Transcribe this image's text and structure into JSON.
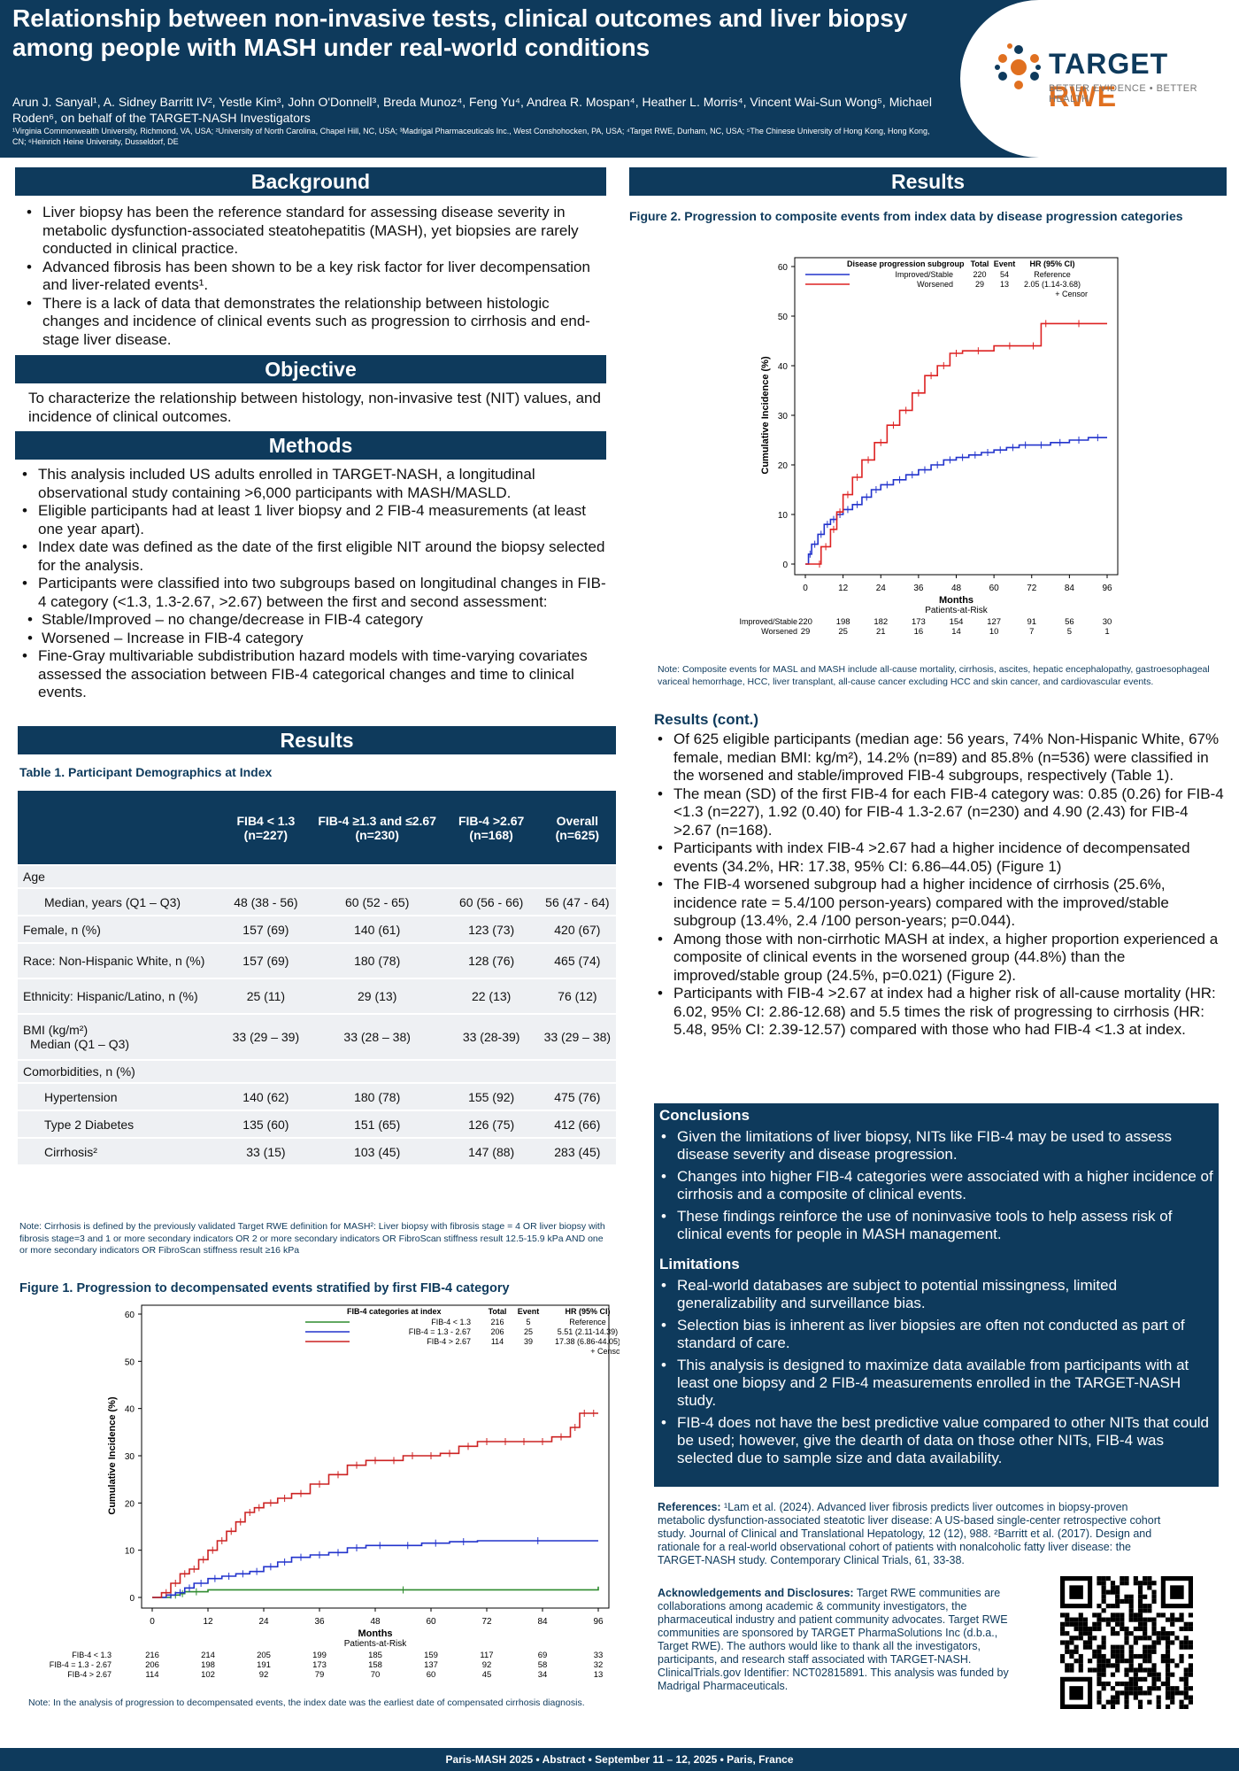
{
  "header": {
    "title": "Relationship between non-invasive tests, clinical outcomes and liver biopsy among people with MASH under real-world conditions",
    "authors": "Arun J. Sanyal¹, A. Sidney Barritt IV², Yestle Kim³, John O'Donnell³, Breda Munoz⁴, Feng Yu⁴, Andrea R. Mospan⁴, Heather L. Morris⁴, Vincent Wai-Sun Wong⁵, Michael Roden⁶, on behalf of the TARGET-NASH Investigators",
    "affiliations": "¹Virginia Commonwealth University, Richmond, VA, USA; ²University of North Carolina, Chapel Hill, NC, USA; ³Madrigal Pharmaceuticals Inc., West Conshohocken, PA, USA; ⁴Target RWE, Durham, NC, USA; ⁵The Chinese University of Hong Kong, Hong Kong, CN; ⁶Heinrich Heine University, Dusseldorf, DE",
    "logo_text_1": "TARGET",
    "logo_text_2": " RWE",
    "logo_tagline": "BETTER EVIDENCE • BETTER HEALTH"
  },
  "background": {
    "heading": "Background",
    "bullets": [
      "Liver biopsy has been the reference standard for assessing disease severity in metabolic dysfunction-associated steatohepatitis (MASH), yet biopsies are rarely conducted in clinical practice.",
      "Advanced fibrosis has been shown to be a key risk factor for liver decompensation and liver-related events¹.",
      "There is a lack of data that demonstrates the relationship between histologic changes and incidence of clinical events such as progression to cirrhosis and end-stage liver disease."
    ]
  },
  "objective": {
    "heading": "Objective",
    "text": "To characterize the relationship between histology, non-invasive test (NIT) values, and incidence of clinical outcomes."
  },
  "methods": {
    "heading": "Methods",
    "bullets": [
      "This analysis included US adults enrolled in TARGET-NASH, a longitudinal observational study containing >6,000 participants with MASH/MASLD.",
      "Eligible participants had at least 1 liver biopsy and 2 FIB-4 measurements (at least one year apart).",
      "Index date was defined as the date of the first eligible NIT around the biopsy selected for the analysis.",
      "Participants were classified into two subgroups based on longitudinal changes in FIB-4 category (<1.3, 1.3-2.67, >2.67) between the first and second assessment:"
    ],
    "sub": [
      "Stable/Improved – no change/decrease in FIB-4 category",
      "Worsened – Increase in FIB-4 category"
    ],
    "last": "Fine-Gray multivariable subdistribution hazard models with time-varying covariates assessed the association between FIB-4 categorical changes and time to clinical events."
  },
  "results_left": {
    "heading": "Results",
    "table_caption": "Table 1. Participant Demographics at Index",
    "table_header": [
      "",
      "FIB4 < 1.3 (n=227)",
      "FIB-4 ≥1.3 and ≤2.67 (n=230)",
      "FIB-4 >2.67 (n=168)",
      "Overall (n=625)"
    ],
    "table_rows": [
      {
        "label": "Age",
        "cells": [
          "",
          "",
          "",
          ""
        ],
        "kind": "sec"
      },
      {
        "label": "Median, years (Q1 – Q3)",
        "cells": [
          "48 (38 - 56)",
          "60 (52 - 65)",
          "60 (56 - 66)",
          "56 (47 - 64)"
        ],
        "kind": "in"
      },
      {
        "label": "Female, n (%)",
        "cells": [
          "157 (69)",
          "140 (61)",
          "123 (73)",
          "420 (67)"
        ],
        "kind": "l"
      },
      {
        "label": "Race: Non-Hispanic White, n (%)",
        "cells": [
          "157 (69)",
          "180 (78)",
          "128 (76)",
          "465 (74)"
        ],
        "kind": "l"
      },
      {
        "label": "Ethnicity: Hispanic/Latino, n (%)",
        "cells": [
          "25 (11)",
          "29 (13)",
          "22 (13)",
          "76 (12)"
        ],
        "kind": "l"
      },
      {
        "label": "BMI (kg/m²)  Median (Q1 – Q3)",
        "cells": [
          "33 (29 – 39)",
          "33 (28 – 38)",
          "33 (28-39)",
          "33 (29 – 38)"
        ],
        "kind": "l"
      },
      {
        "label": "Comorbidities, n (%)",
        "cells": [
          "",
          "",
          "",
          ""
        ],
        "kind": "sec"
      },
      {
        "label": "Hypertension",
        "cells": [
          "140 (62)",
          "180 (78)",
          "155 (92)",
          "475 (76)"
        ],
        "kind": "in"
      },
      {
        "label": "Type 2 Diabetes",
        "cells": [
          "135 (60)",
          "151 (65)",
          "126 (75)",
          "412 (66)"
        ],
        "kind": "in"
      },
      {
        "label": "Cirrhosis²",
        "cells": [
          "33 (15)",
          "103 (45)",
          "147 (88)",
          "283 (45)"
        ],
        "kind": "in"
      }
    ],
    "table_note": "Note: Cirrhosis is defined by the previously validated Target RWE definition for MASH²: Liver biopsy with fibrosis stage = 4 OR liver biopsy with fibrosis stage=3 and 1 or more secondary indicators OR 2 or more secondary indicators OR FibroScan stiffness result 12.5-15.9 kPa AND one or more secondary indicators OR FibroScan stiffness result ≥16 kPa",
    "fig1_caption": "Figure 1. Progression to decompensated events stratified by first FIB-4 category",
    "fig1_note": "Note: In the analysis of progression to decompensated events, the index date was the earliest date of compensated cirrhosis diagnosis."
  },
  "results_right": {
    "heading": "Results",
    "fig2_caption": "Figure 2. Progression to composite events from index data by disease progression categories",
    "fig2_note": "Note: Composite events for MASL and MASH include all-cause mortality, cirrhosis, ascites, hepatic encephalopathy, gastroesophageal variceal hemorrhage, HCC, liver transplant, all-cause cancer excluding HCC and skin cancer, and cardiovascular events.",
    "cont_heading": "Results (cont.)",
    "cont_bullets": [
      "Of 625 eligible participants (median age: 56 years, 74% Non-Hispanic White, 67% female, median BMI: kg/m²), 14.2% (n=89) and 85.8% (n=536) were classified in the worsened and stable/improved FIB-4 subgroups, respectively (Table 1).",
      "The mean (SD) of the first FIB-4 for each FIB-4 category was: 0.85 (0.26) for FIB-4 <1.3 (n=227), 1.92 (0.40) for FIB-4 1.3-2.67 (n=230) and 4.90 (2.43) for FIB-4 >2.67 (n=168).",
      "Participants with index FIB-4 >2.67 had a higher incidence of decompensated events (34.2%, HR: 17.38, 95% CI: 6.86–44.05) (Figure 1)",
      "The FIB-4 worsened subgroup had a higher incidence of cirrhosis (25.6%, incidence rate = 5.4/100 person-years) compared with the improved/stable subgroup (13.4%, 2.4 /100 person-years; p=0.044).",
      "Among those with non-cirrhotic MASH at index, a higher proportion experienced a composite of clinical events in the worsened group (44.8%) than the improved/stable group (24.5%, p=0.021) (Figure 2).",
      "Participants with FIB-4 >2.67 at index had a higher risk of all-cause mortality (HR: 6.02, 95% CI: 2.86-12.68) and 5.5 times the risk of progressing to cirrhosis (HR: 5.48, 95% CI: 2.39-12.57) compared with those who had FIB-4 <1.3 at index."
    ],
    "conclusions_heading": "Conclusions",
    "conclusions": [
      "Given the limitations of liver biopsy, NITs like FIB-4 may be used to assess disease severity and disease progression.",
      "Changes into higher FIB-4 categories were associated with a higher incidence of cirrhosis and a composite of clinical events.",
      "These findings reinforce the use of noninvasive tools to help assess risk of clinical events for people in MASH management."
    ],
    "limitations_heading": "Limitations",
    "limitations": [
      "Real-world databases are subject to potential missingness, limited generalizability and surveillance bias.",
      "Selection bias is inherent as liver biopsies are often not conducted as part of standard of care.",
      "This analysis is designed to maximize data available from participants with at least one biopsy and 2 FIB-4 measurements enrolled in the TARGET-NASH study.",
      "FIB-4 does not have the best predictive value compared to other NITs that could be used; however, give the dearth of data on those other NITs, FIB-4 was selected due to sample size and data availability."
    ],
    "refs_label": "References:",
    "refs_text": " ¹Lam et al. (2024). Advanced liver fibrosis predicts liver outcomes in biopsy-proven metabolic dysfunction-associated steatotic liver disease: A US-based single-center retrospective cohort study. Journal of Clinical and Translational Hepatology, 12 (12), 988. ²Barritt et al. (2017). Design and rationale for a real-world observational cohort of patients with nonalcoholic fatty liver disease: the TARGET-NASH study. Contemporary Clinical Trials, 61, 33-38.",
    "ack_label": "Acknowledgements and Disclosures:",
    "ack_text": " Target RWE communities are collaborations among academic & community investigators, the pharmaceutical industry and patient community advocates. Target RWE communities are sponsored by TARGET PharmaSolutions Inc (d.b.a., Target RWE). The authors would like to thank all the investigators, participants, and research staff associated with TARGET-NASH. ClinicalTrials.gov Identifier: NCT02815891. This analysis was funded by Madrigal Pharmaceuticals."
  },
  "footer": "Paris-MASH 2025 • Abstract • September 11 – 12, 2025 • Paris, France",
  "chart_data": [
    {
      "type": "line",
      "id": "fig1",
      "ylabel": "Cumulative Incidence (%)",
      "xlabel": "Months",
      "ylim": [
        0,
        60
      ],
      "xlim": [
        0,
        96
      ],
      "xticks": [
        0,
        12,
        24,
        36,
        48,
        60,
        72,
        84,
        96
      ],
      "yticks": [
        0,
        10,
        20,
        30,
        40,
        50,
        60
      ],
      "legend_title": "FIB-4 categories at index",
      "legend_cols": [
        "Total",
        "Event",
        "HR (95% CI)"
      ],
      "censor_label": "+ Censor",
      "risk_title": "Patients-at-Risk",
      "series": [
        {
          "name": "FIB-4 < 1.3",
          "color": "#2e8b2e",
          "total": "216",
          "event": "5",
          "hr": "Reference",
          "x": [
            0,
            4,
            6,
            7,
            12,
            96
          ],
          "y": [
            0,
            0.5,
            0.8,
            1.2,
            1.6,
            2.3
          ],
          "risk": [
            "216",
            "214",
            "205",
            "199",
            "185",
            "159",
            "117",
            "69",
            "33"
          ]
        },
        {
          "name": "FIB-4 = 1.3 - 2.67",
          "color": "#2233cc",
          "total": "206",
          "event": "25",
          "hr": "5.51 (2.11-14.39)",
          "x": [
            0,
            3,
            5,
            7,
            9,
            12,
            15,
            18,
            21,
            24,
            27,
            30,
            34,
            38,
            42,
            46,
            52,
            58,
            64,
            70,
            96
          ],
          "y": [
            0,
            0.5,
            1,
            2,
            3,
            4,
            4.5,
            5,
            5.5,
            6.5,
            7.5,
            8.5,
            9,
            9.5,
            10.5,
            11,
            11,
            11.5,
            11.8,
            12,
            12
          ],
          "risk": [
            "206",
            "198",
            "191",
            "173",
            "158",
            "137",
            "92",
            "58",
            "32"
          ]
        },
        {
          "name": "FIB-4 > 2.67",
          "color": "#cc2222",
          "total": "114",
          "event": "39",
          "hr": "17.38 (6.86-44.05)",
          "x": [
            0,
            2,
            4,
            6,
            8,
            10,
            12,
            14,
            16,
            18,
            20,
            22,
            24,
            27,
            30,
            34,
            38,
            42,
            46,
            50,
            54,
            58,
            62,
            66,
            70,
            74,
            78,
            82,
            86,
            90,
            92,
            94,
            96
          ],
          "y": [
            0,
            1,
            3,
            5,
            6,
            8,
            10,
            12,
            14,
            16,
            18,
            19,
            20,
            21,
            22,
            24,
            26,
            28,
            29,
            29,
            30,
            30,
            30.5,
            32,
            33,
            33,
            33,
            33,
            34,
            36,
            39,
            39,
            39
          ],
          "risk": [
            "114",
            "102",
            "92",
            "79",
            "70",
            "60",
            "45",
            "34",
            "13"
          ]
        }
      ]
    },
    {
      "type": "line",
      "id": "fig2",
      "ylabel": "Cumulative Incidence (%)",
      "xlabel": "Months",
      "ylim": [
        0,
        60
      ],
      "xlim": [
        0,
        96
      ],
      "xticks": [
        0,
        12,
        24,
        36,
        48,
        60,
        72,
        84,
        96
      ],
      "yticks": [
        0,
        10,
        20,
        30,
        40,
        50,
        60
      ],
      "legend_title": "Disease progression subgroup",
      "legend_cols": [
        "Total",
        "Event",
        "HR (95% CI)"
      ],
      "censor_label": "+ Censor",
      "risk_title": "Patients-at-Risk",
      "series": [
        {
          "name": "Improved/Stable",
          "color": "#2233cc",
          "total": "220",
          "event": "54",
          "hr": "Reference",
          "x": [
            0,
            1,
            2,
            4,
            6,
            8,
            10,
            12,
            15,
            18,
            21,
            24,
            28,
            32,
            36,
            40,
            44,
            48,
            52,
            56,
            60,
            64,
            68,
            72,
            78,
            84,
            90,
            96
          ],
          "y": [
            0,
            2,
            4,
            6,
            8,
            9,
            10,
            11,
            12,
            13.5,
            15,
            16,
            17,
            18,
            19,
            20,
            21,
            21.5,
            22,
            22.5,
            23,
            23.5,
            24,
            24,
            24.5,
            25,
            25.5,
            25.5
          ],
          "risk": [
            "220",
            "198",
            "182",
            "173",
            "154",
            "127",
            "91",
            "56",
            "30"
          ]
        },
        {
          "name": "Worsened",
          "color": "#dd2222",
          "total": "29",
          "event": "13",
          "hr": "2.05 (1.14-3.68)",
          "x": [
            0,
            4,
            5,
            8,
            10,
            12,
            15,
            18,
            22,
            26,
            30,
            34,
            38,
            42,
            46,
            50,
            60,
            70,
            75,
            78,
            96
          ],
          "y": [
            0,
            0,
            3.5,
            7,
            10.5,
            14,
            17.5,
            21,
            24.5,
            28,
            31,
            34.5,
            38,
            40,
            42.5,
            43,
            44,
            44,
            48.5,
            48.5,
            48.5
          ],
          "risk": [
            "29",
            "25",
            "21",
            "16",
            "14",
            "10",
            "7",
            "5",
            "1"
          ]
        }
      ]
    }
  ]
}
